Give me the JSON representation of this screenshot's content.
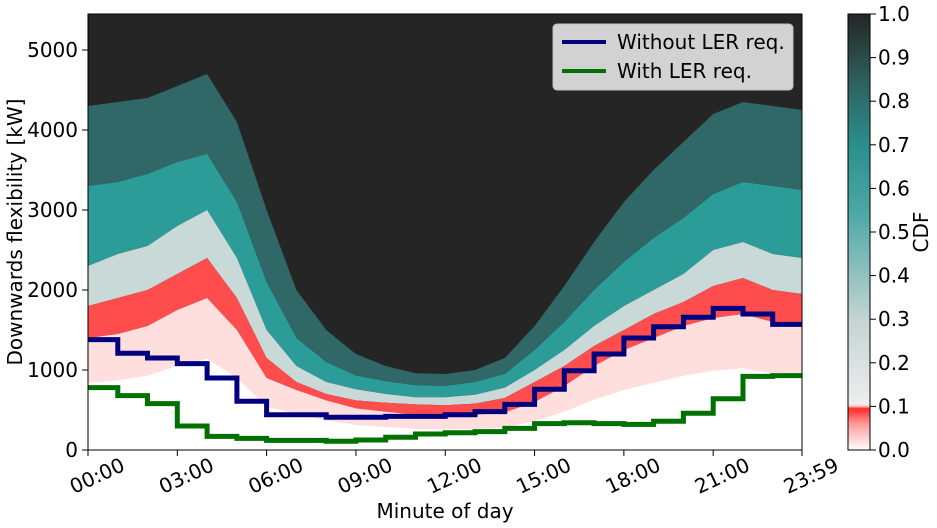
{
  "chart_data": {
    "type": "heatmap",
    "xlabel": "Minute of day",
    "ylabel": "Downwards flexibility [kW]",
    "xlim": [
      0,
      1439
    ],
    "ylim": [
      0,
      5450
    ],
    "x_ticks": [
      {
        "value": 0,
        "label": "00:00"
      },
      {
        "value": 180,
        "label": "03:00"
      },
      {
        "value": 360,
        "label": "06:00"
      },
      {
        "value": 540,
        "label": "09:00"
      },
      {
        "value": 720,
        "label": "12:00"
      },
      {
        "value": 900,
        "label": "15:00"
      },
      {
        "value": 1080,
        "label": "18:00"
      },
      {
        "value": 1260,
        "label": "21:00"
      },
      {
        "value": 1439,
        "label": "23:59"
      }
    ],
    "y_ticks": [
      0,
      1000,
      2000,
      3000,
      4000,
      5000
    ],
    "colorbar": {
      "label": "CDF",
      "range": [
        0,
        1
      ],
      "ticks": [
        "0.0",
        "0.1",
        "0.2",
        "0.3",
        "0.4",
        "0.5",
        "0.6",
        "0.7",
        "0.8",
        "0.9",
        "1.0"
      ]
    },
    "legend": {
      "placement": "top-right"
    },
    "heatmap_bands": {
      "x": [
        0,
        60,
        120,
        180,
        240,
        300,
        360,
        420,
        480,
        540,
        600,
        660,
        720,
        780,
        840,
        900,
        960,
        1020,
        1080,
        1140,
        1200,
        1260,
        1320,
        1380,
        1439
      ],
      "red_start": [
        1400,
        1450,
        1550,
        1750,
        1900,
        1500,
        900,
        750,
        620,
        520,
        480,
        440,
        430,
        440,
        470,
        600,
        800,
        1050,
        1250,
        1400,
        1550,
        1650,
        1700,
        1600,
        1550
      ],
      "cdf_01": [
        1800,
        1900,
        2000,
        2200,
        2400,
        1900,
        1150,
        850,
        700,
        620,
        590,
        570,
        560,
        580,
        650,
        850,
        1050,
        1300,
        1500,
        1700,
        1850,
        2050,
        2150,
        2000,
        1950
      ],
      "cdf_03": [
        2300,
        2450,
        2550,
        2800,
        3000,
        2400,
        1500,
        1050,
        850,
        760,
        700,
        660,
        660,
        690,
        780,
        1000,
        1250,
        1550,
        1800,
        2000,
        2200,
        2500,
        2600,
        2450,
        2400
      ],
      "cdf_06": [
        3300,
        3350,
        3450,
        3600,
        3700,
        3100,
        2100,
        1400,
        1100,
        930,
        860,
        810,
        800,
        850,
        950,
        1250,
        1600,
        2000,
        2350,
        2650,
        2900,
        3200,
        3350,
        3300,
        3250
      ],
      "cdf_09": [
        4300,
        4350,
        4400,
        4550,
        4700,
        4100,
        3000,
        2000,
        1500,
        1200,
        1050,
        960,
        950,
        1000,
        1150,
        1550,
        2050,
        2600,
        3100,
        3500,
        3850,
        4200,
        4350,
        4300,
        4250
      ]
    },
    "series": [
      {
        "name": "Without LER req.",
        "color": "#00007f",
        "steps": [
          {
            "x0": 0,
            "x1": 60,
            "y": 1380
          },
          {
            "x0": 60,
            "x1": 120,
            "y": 1210
          },
          {
            "x0": 120,
            "x1": 180,
            "y": 1150
          },
          {
            "x0": 180,
            "x1": 240,
            "y": 1080
          },
          {
            "x0": 240,
            "x1": 300,
            "y": 900
          },
          {
            "x0": 300,
            "x1": 360,
            "y": 610
          },
          {
            "x0": 360,
            "x1": 480,
            "y": 440
          },
          {
            "x0": 480,
            "x1": 600,
            "y": 410
          },
          {
            "x0": 600,
            "x1": 720,
            "y": 420
          },
          {
            "x0": 720,
            "x1": 780,
            "y": 440
          },
          {
            "x0": 780,
            "x1": 840,
            "y": 480
          },
          {
            "x0": 840,
            "x1": 900,
            "y": 570
          },
          {
            "x0": 900,
            "x1": 960,
            "y": 760
          },
          {
            "x0": 960,
            "x1": 1020,
            "y": 990
          },
          {
            "x0": 1020,
            "x1": 1080,
            "y": 1200
          },
          {
            "x0": 1080,
            "x1": 1140,
            "y": 1400
          },
          {
            "x0": 1140,
            "x1": 1200,
            "y": 1540
          },
          {
            "x0": 1200,
            "x1": 1260,
            "y": 1660
          },
          {
            "x0": 1260,
            "x1": 1320,
            "y": 1770
          },
          {
            "x0": 1320,
            "x1": 1380,
            "y": 1700
          },
          {
            "x0": 1380,
            "x1": 1439,
            "y": 1570
          }
        ]
      },
      {
        "name": "With LER req.",
        "color": "#007000",
        "steps": [
          {
            "x0": 0,
            "x1": 60,
            "y": 780
          },
          {
            "x0": 60,
            "x1": 120,
            "y": 680
          },
          {
            "x0": 120,
            "x1": 180,
            "y": 580
          },
          {
            "x0": 180,
            "x1": 240,
            "y": 300
          },
          {
            "x0": 240,
            "x1": 300,
            "y": 170
          },
          {
            "x0": 300,
            "x1": 360,
            "y": 145
          },
          {
            "x0": 360,
            "x1": 480,
            "y": 120
          },
          {
            "x0": 480,
            "x1": 540,
            "y": 110
          },
          {
            "x0": 540,
            "x1": 600,
            "y": 125
          },
          {
            "x0": 600,
            "x1": 660,
            "y": 160
          },
          {
            "x0": 660,
            "x1": 720,
            "y": 200
          },
          {
            "x0": 720,
            "x1": 780,
            "y": 215
          },
          {
            "x0": 780,
            "x1": 840,
            "y": 230
          },
          {
            "x0": 840,
            "x1": 900,
            "y": 270
          },
          {
            "x0": 900,
            "x1": 960,
            "y": 330
          },
          {
            "x0": 960,
            "x1": 1020,
            "y": 340
          },
          {
            "x0": 1020,
            "x1": 1080,
            "y": 330
          },
          {
            "x0": 1080,
            "x1": 1140,
            "y": 320
          },
          {
            "x0": 1140,
            "x1": 1200,
            "y": 360
          },
          {
            "x0": 1200,
            "x1": 1260,
            "y": 460
          },
          {
            "x0": 1260,
            "x1": 1320,
            "y": 640
          },
          {
            "x0": 1320,
            "x1": 1380,
            "y": 920
          },
          {
            "x0": 1380,
            "x1": 1439,
            "y": 930
          }
        ]
      }
    ]
  }
}
